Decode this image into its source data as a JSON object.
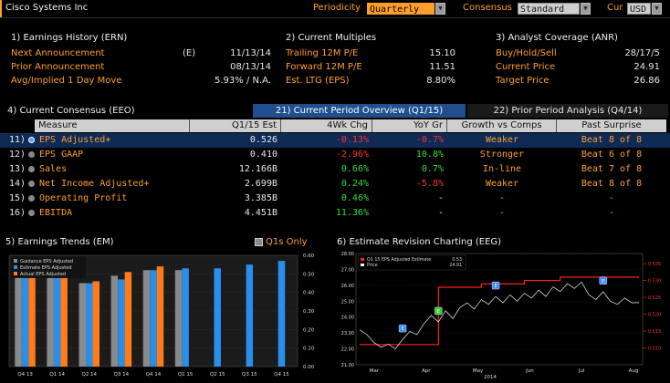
{
  "header": {
    "title": "Cisco Systems Inc",
    "periodicity_label": "Periodicity",
    "periodicity_value": "Quarterly",
    "consensus_label": "Consensus",
    "consensus_value": "Standard",
    "cur_label": "Cur",
    "cur_value": "USD"
  },
  "earnings_history": {
    "title": "1) Earnings History (ERN)",
    "rows": [
      {
        "label": "Next Announcement",
        "flag": "(E)",
        "value": "11/13/14"
      },
      {
        "label": "Prior Announcement",
        "flag": "",
        "value": "08/13/14"
      },
      {
        "label": "Avg/Implied 1 Day Move",
        "flag": "",
        "value": "5.93% / N.A."
      }
    ]
  },
  "current_multiples": {
    "title": "2) Current Multiples",
    "rows": [
      {
        "label": "Trailing 12M P/E",
        "value": "15.10"
      },
      {
        "label": "Forward 12M P/E",
        "value": "11.51"
      },
      {
        "label": "Est. LTG (EPS)",
        "value": "8.80%"
      }
    ]
  },
  "analyst_coverage": {
    "title": "3) Analyst Coverage (ANR)",
    "rows": [
      {
        "label": "Buy/Hold/Sell",
        "value": "28/17/5"
      },
      {
        "label": "Current Price",
        "value": "24.91"
      },
      {
        "label": "Target Price",
        "value": "26.86"
      }
    ]
  },
  "consensus": {
    "title": "4) Current Consensus (EEO)",
    "tab1": "21) Current Period Overview (Q1/15)",
    "tab2": "22) Prior Period Analysis (Q4/14)",
    "columns": [
      "Measure",
      "Q1/15 Est",
      "4Wk Chg",
      "YoY Gr",
      "Growth vs Comps",
      "Past Surprise"
    ],
    "rows": [
      {
        "num": "11)",
        "measure": "EPS Adjusted+",
        "est": "0.526",
        "chg": "-0.13%",
        "yoy": "-0.7%",
        "growth": "Weaker",
        "surprise": "Beat 8 of 8",
        "chg_color": "#ff3030",
        "yoy_color": "#ff3030"
      },
      {
        "num": "12)",
        "measure": "EPS GAAP",
        "est": "0.410",
        "chg": "-2.96%",
        "yoy": "10.8%",
        "growth": "Stronger",
        "surprise": "Beat 6 of 8",
        "chg_color": "#ff3030",
        "yoy_color": "#33dd33"
      },
      {
        "num": "13)",
        "measure": "Sales",
        "est": "12.166B",
        "chg": "0.66%",
        "yoy": "0.7%",
        "growth": "In-line",
        "surprise": "Beat 7 of 8",
        "chg_color": "#33dd33",
        "yoy_color": "#33dd33"
      },
      {
        "num": "14)",
        "measure": "Net Income Adjusted+",
        "est": "2.699B",
        "chg": "0.24%",
        "yoy": "-5.8%",
        "growth": "Weaker",
        "surprise": "Beat 8 of 8",
        "chg_color": "#33dd33",
        "yoy_color": "#ff3030"
      },
      {
        "num": "15)",
        "measure": "Operating Profit",
        "est": "3.385B",
        "chg": "0.46%",
        "yoy": "-",
        "growth": "-",
        "surprise": "-",
        "chg_color": "#33dd33",
        "yoy_color": "#e8e8e8"
      },
      {
        "num": "16)",
        "measure": "EBITDA",
        "est": "4.451B",
        "chg": "11.36%",
        "yoy": "-",
        "growth": "-",
        "surprise": "-",
        "chg_color": "#33dd33",
        "yoy_color": "#e8e8e8"
      }
    ]
  },
  "earnings_trends": {
    "title": "5) Earnings Trends (EM)",
    "q1s_label": "Q1s Only"
  },
  "estimate_revision": {
    "title": "6) Estimate Revision Charting (EEG)"
  },
  "chart_data": [
    {
      "type": "bar",
      "categories": [
        "Q4 13",
        "Q1 14",
        "Q2 14",
        "Q3 14",
        "Q4 14",
        "Q1 15",
        "Q2 15",
        "Q3 15",
        "Q4 15"
      ],
      "series": [
        {
          "name": "Guidance EPS Adjusted",
          "color": "#8a8a8a",
          "values": [
            0.48,
            0.48,
            0.45,
            0.49,
            0.52,
            0.52,
            null,
            null,
            null
          ]
        },
        {
          "name": "Estimate EPS Adjusted",
          "color": "#2a8fe8",
          "values": [
            0.48,
            0.48,
            0.45,
            0.47,
            0.52,
            0.53,
            0.53,
            0.55,
            0.57
          ]
        },
        {
          "name": "Actual EPS Adjusted",
          "color": "#ff7a1a",
          "values": [
            0.48,
            0.48,
            0.46,
            0.51,
            0.54,
            null,
            null,
            null,
            null
          ]
        }
      ],
      "ylim": [
        0,
        0.6
      ],
      "yticks": [
        "0.00",
        "0.10",
        "0.20",
        "0.30",
        "0.40",
        "0.50",
        "0.60"
      ]
    },
    {
      "type": "line",
      "legend": [
        {
          "name": "Q1 15 EPS Adjusted Estimate",
          "value": "0.53",
          "color": "#ff2020"
        },
        {
          "name": "Price",
          "value": "24.91",
          "color": "#ffffff"
        }
      ],
      "x_labels": [
        "Mar",
        "Apr",
        "May",
        "Jun",
        "Jul",
        "Aug"
      ],
      "x_year": "2014",
      "left_axis": {
        "ticks": [
          "21.00",
          "22.00",
          "23.00",
          "24.00",
          "25.00",
          "26.00",
          "27.00",
          "28.00"
        ],
        "ylim": [
          21,
          28
        ]
      },
      "right_axis": {
        "ticks": [
          "0.510",
          "0.515",
          "0.520",
          "0.525",
          "0.530",
          "0.535"
        ],
        "ylim": [
          0.505,
          0.538
        ]
      },
      "markers": [
        "E",
        "E",
        "E",
        "E"
      ],
      "price": [
        23.2,
        22.9,
        22.4,
        22.1,
        22.3,
        22.0,
        22.6,
        23.1,
        22.9,
        23.6,
        24.1,
        23.7,
        24.4,
        23.9,
        24.6,
        24.9,
        24.5,
        25.1,
        24.8,
        25.3,
        24.9,
        25.4,
        25.0,
        25.5,
        25.2,
        25.7,
        25.3,
        25.9,
        25.6,
        26.1,
        25.8,
        26.2,
        25.4,
        25.1,
        25.6,
        25.0,
        24.8,
        25.2,
        24.9,
        24.91
      ],
      "estimate": [
        0.511,
        0.511,
        0.511,
        0.511,
        0.511,
        0.511,
        0.511,
        0.511,
        0.511,
        0.511,
        0.511,
        0.528,
        0.528,
        0.528,
        0.528,
        0.528,
        0.528,
        0.529,
        0.529,
        0.529,
        0.529,
        0.529,
        0.529,
        0.53,
        0.53,
        0.53,
        0.53,
        0.53,
        0.531,
        0.531,
        0.531,
        0.531,
        0.531,
        0.531,
        0.531,
        0.531,
        0.531,
        0.531,
        0.531,
        0.531
      ]
    }
  ]
}
